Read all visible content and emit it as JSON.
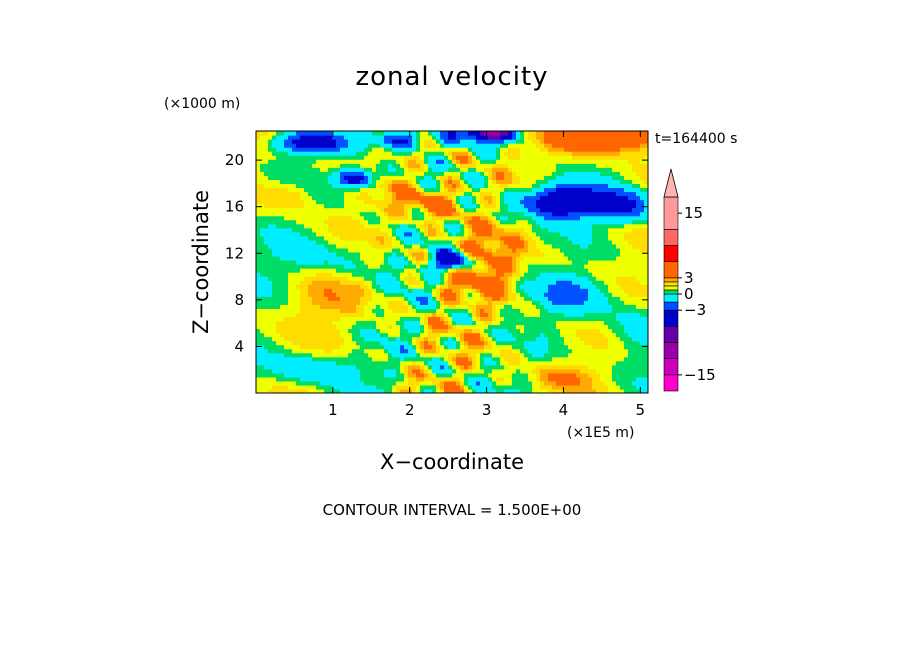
{
  "chart_data": {
    "type": "heatmap",
    "title": "zonal velocity",
    "xlabel": "X−coordinate",
    "ylabel": "Z−coordinate",
    "x_scale_label": "(×1E5 m)",
    "y_scale_label": "(×1000 m)",
    "time_label": "t=164400 s",
    "footer": "CONTOUR INTERVAL = 1.500E+00",
    "xlim": [
      0,
      5.1
    ],
    "ylim": [
      0,
      22.5
    ],
    "x_ticks": [
      "1",
      "2",
      "3",
      "4",
      "5"
    ],
    "y_ticks": [
      "4",
      "8",
      "12",
      "16",
      "20"
    ],
    "colorbar": {
      "min": -18,
      "max": 18,
      "tick_labels": [
        "15",
        "3",
        "0",
        "−3",
        "−15"
      ],
      "tick_values": [
        15,
        3,
        0,
        -3,
        -15
      ],
      "extend": "max",
      "levels": [
        {
          "from": -18,
          "to": -15,
          "color": "#ff00cc"
        },
        {
          "from": -15,
          "to": -12,
          "color": "#cc00bb"
        },
        {
          "from": -12,
          "to": -9,
          "color": "#9900aa"
        },
        {
          "from": -9,
          "to": -6,
          "color": "#6600aa"
        },
        {
          "from": -6,
          "to": -3,
          "color": "#0000cc"
        },
        {
          "from": -3,
          "to": -1.5,
          "color": "#0050ff"
        },
        {
          "from": -1.5,
          "to": 0,
          "color": "#00eeff"
        },
        {
          "from": 0,
          "to": 0.75,
          "color": "#00dd66"
        },
        {
          "from": 0.75,
          "to": 1.5,
          "color": "#eeff00"
        },
        {
          "from": 1.5,
          "to": 2.25,
          "color": "#ffdd00"
        },
        {
          "from": 2.25,
          "to": 3,
          "color": "#ffaa00"
        },
        {
          "from": 3,
          "to": 6,
          "color": "#ff6600"
        },
        {
          "from": 6,
          "to": 9,
          "color": "#ff0000"
        },
        {
          "from": 9,
          "to": 12,
          "color": "#ff6666"
        },
        {
          "from": 12,
          "to": 18,
          "color": "#ff9999"
        }
      ],
      "extend_color": "#ffb3b3"
    },
    "grid": false
  }
}
